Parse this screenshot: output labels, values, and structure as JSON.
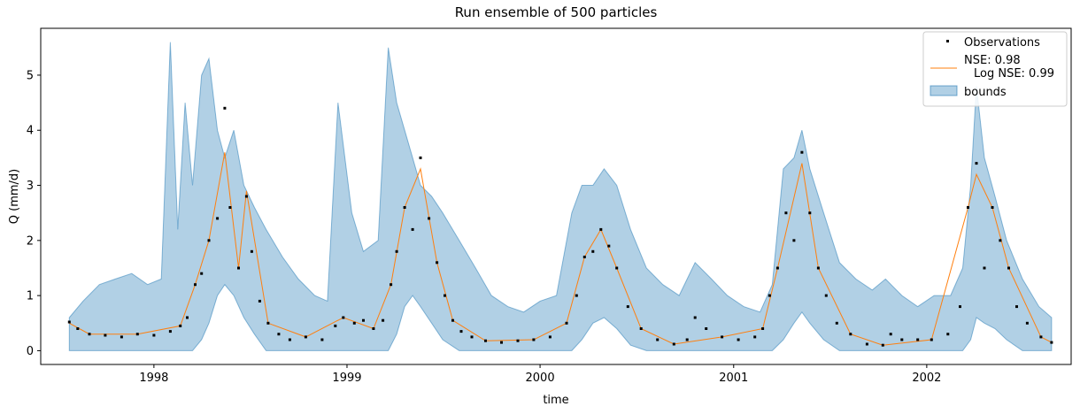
{
  "chart_data": {
    "type": "line",
    "title": "Run ensemble of 500 particles",
    "xlabel": "time",
    "ylabel": "Q (mm/d)",
    "xlim": [
      "1997-06-01",
      "2002-10-01"
    ],
    "ylim": [
      -0.25,
      5.85
    ],
    "x_ticks": [
      "1998-01-01",
      "1999-01-01",
      "2000-01-01",
      "2001-01-01",
      "2002-01-01"
    ],
    "x_tick_labels": [
      "1998",
      "1999",
      "2000",
      "2001",
      "2002"
    ],
    "y_ticks": [
      0,
      1,
      2,
      3,
      4,
      5
    ],
    "y_tick_labels": [
      "0",
      "1",
      "2",
      "3",
      "4",
      "5"
    ],
    "legend_position": "top-right",
    "grid": false,
    "colors": {
      "observations": "#000000",
      "simulation": "#ff7f0e",
      "bounds_fill": "#1f77b4"
    },
    "legend": [
      {
        "label": "Observations",
        "marker": "dot"
      },
      {
        "label": "NSE: 0.98",
        "label_line2": "Log NSE: 0.99",
        "marker": "line"
      },
      {
        "label": "bounds",
        "marker": "patch"
      }
    ],
    "series": [
      {
        "name": "Observations",
        "kind": "scatter",
        "x": [
          "1997-07-25",
          "1997-08-10",
          "1997-09-01",
          "1997-10-01",
          "1997-11-01",
          "1997-12-01",
          "1998-01-01",
          "1998-02-01",
          "1998-02-20",
          "1998-03-05",
          "1998-03-20",
          "1998-04-01",
          "1998-04-15",
          "1998-05-01",
          "1998-05-15",
          "1998-05-25",
          "1998-06-10",
          "1998-06-25",
          "1998-07-05",
          "1998-07-20",
          "1998-08-05",
          "1998-08-25",
          "1998-09-15",
          "1998-10-15",
          "1998-11-15",
          "1998-12-10",
          "1998-12-25",
          "1999-01-15",
          "1999-02-01",
          "1999-02-20",
          "1999-03-10",
          "1999-03-25",
          "1999-04-05",
          "1999-04-20",
          "1999-05-05",
          "1999-05-20",
          "1999-06-05",
          "1999-06-20",
          "1999-07-05",
          "1999-07-20",
          "1999-08-05",
          "1999-08-25",
          "1999-09-20",
          "1999-10-20",
          "1999-11-20",
          "1999-12-20",
          "2000-01-20",
          "2000-02-20",
          "2000-03-10",
          "2000-03-25",
          "2000-04-10",
          "2000-04-25",
          "2000-05-10",
          "2000-05-25",
          "2000-06-15",
          "2000-07-10",
          "2000-08-10",
          "2000-09-10",
          "2000-10-05",
          "2000-10-20",
          "2000-11-10",
          "2000-12-10",
          "2001-01-10",
          "2001-02-10",
          "2001-02-25",
          "2001-03-10",
          "2001-03-25",
          "2001-04-10",
          "2001-04-25",
          "2001-05-10",
          "2001-05-25",
          "2001-06-10",
          "2001-06-25",
          "2001-07-15",
          "2001-08-10",
          "2001-09-10",
          "2001-10-10",
          "2001-10-25",
          "2001-11-15",
          "2001-12-15",
          "2002-01-10",
          "2002-02-10",
          "2002-03-05",
          "2002-03-20",
          "2002-04-05",
          "2002-04-20",
          "2002-05-05",
          "2002-05-20",
          "2002-06-05",
          "2002-06-20",
          "2002-07-10",
          "2002-08-05",
          "2002-08-25"
        ],
        "y": [
          0.52,
          0.4,
          0.3,
          0.28,
          0.25,
          0.3,
          0.28,
          0.35,
          0.45,
          0.6,
          1.2,
          1.4,
          2.0,
          2.4,
          4.4,
          2.6,
          1.5,
          2.8,
          1.8,
          0.9,
          0.5,
          0.3,
          0.2,
          0.25,
          0.2,
          0.45,
          0.6,
          0.5,
          0.55,
          0.4,
          0.55,
          1.2,
          1.8,
          2.6,
          2.2,
          3.5,
          2.4,
          1.6,
          1.0,
          0.55,
          0.35,
          0.25,
          0.18,
          0.15,
          0.18,
          0.2,
          0.25,
          0.5,
          1.0,
          1.7,
          1.8,
          2.2,
          1.9,
          1.5,
          0.8,
          0.4,
          0.2,
          0.12,
          0.2,
          0.6,
          0.4,
          0.25,
          0.2,
          0.25,
          0.4,
          1.0,
          1.5,
          2.5,
          2.0,
          3.6,
          2.5,
          1.5,
          1.0,
          0.5,
          0.3,
          0.12,
          0.1,
          0.3,
          0.2,
          0.2,
          0.2,
          0.3,
          0.8,
          2.6,
          3.4,
          1.5,
          2.6,
          2.0,
          1.5,
          0.8,
          0.5,
          0.25,
          0.15
        ]
      },
      {
        "name": "NSE: 0.98",
        "kind": "line",
        "x": [
          "1997-07-25",
          "1997-09-01",
          "1997-12-01",
          "1998-02-20",
          "1998-03-20",
          "1998-04-15",
          "1998-05-15",
          "1998-06-10",
          "1998-06-25",
          "1998-08-05",
          "1998-10-15",
          "1998-12-25",
          "1999-02-20",
          "1999-03-25",
          "1999-04-20",
          "1999-05-20",
          "1999-06-20",
          "1999-07-20",
          "1999-09-20",
          "1999-12-20",
          "2000-02-20",
          "2000-03-25",
          "2000-04-25",
          "2000-05-25",
          "2000-07-10",
          "2000-09-10",
          "2000-12-10",
          "2001-02-25",
          "2001-03-25",
          "2001-05-10",
          "2001-06-10",
          "2001-08-10",
          "2001-10-10",
          "2002-01-10",
          "2002-03-20",
          "2002-04-05",
          "2002-05-05",
          "2002-06-05",
          "2002-08-05",
          "2002-08-25"
        ],
        "y": [
          0.5,
          0.3,
          0.3,
          0.45,
          1.2,
          2.0,
          3.6,
          1.5,
          2.9,
          0.5,
          0.25,
          0.6,
          0.4,
          1.2,
          2.6,
          3.3,
          1.6,
          0.55,
          0.18,
          0.2,
          0.5,
          1.7,
          2.2,
          1.5,
          0.4,
          0.12,
          0.25,
          0.4,
          1.5,
          3.4,
          1.5,
          0.3,
          0.1,
          0.2,
          2.6,
          3.2,
          2.6,
          1.5,
          0.25,
          0.15
        ]
      }
    ],
    "bounds": {
      "name": "bounds",
      "x": [
        "1997-07-25",
        "1997-08-20",
        "1997-09-20",
        "1997-10-20",
        "1997-11-20",
        "1997-12-20",
        "1998-01-15",
        "1998-02-01",
        "1998-02-15",
        "1998-03-01",
        "1998-03-15",
        "1998-04-01",
        "1998-04-15",
        "1998-05-01",
        "1998-05-15",
        "1998-06-01",
        "1998-06-20",
        "1998-07-10",
        "1998-08-01",
        "1998-09-01",
        "1998-10-01",
        "1998-11-01",
        "1998-11-25",
        "1998-12-15",
        "1999-01-10",
        "1999-02-01",
        "1999-03-01",
        "1999-03-20",
        "1999-04-05",
        "1999-04-20",
        "1999-05-05",
        "1999-05-20",
        "1999-06-10",
        "1999-07-01",
        "1999-08-01",
        "1999-09-01",
        "1999-10-01",
        "1999-11-01",
        "1999-12-01",
        "2000-01-01",
        "2000-02-01",
        "2000-03-01",
        "2000-03-20",
        "2000-04-10",
        "2000-05-01",
        "2000-05-25",
        "2000-06-20",
        "2000-07-20",
        "2000-08-20",
        "2000-09-20",
        "2000-10-20",
        "2000-11-20",
        "2000-12-20",
        "2001-01-20",
        "2001-02-20",
        "2001-03-15",
        "2001-04-05",
        "2001-04-25",
        "2001-05-10",
        "2001-05-25",
        "2001-06-20",
        "2001-07-20",
        "2001-08-20",
        "2001-09-20",
        "2001-10-15",
        "2001-11-15",
        "2001-12-15",
        "2002-01-15",
        "2002-02-15",
        "2002-03-10",
        "2002-03-25",
        "2002-04-05",
        "2002-04-20",
        "2002-05-10",
        "2002-06-01",
        "2002-07-01",
        "2002-08-01",
        "2002-08-25"
      ],
      "upper": [
        0.6,
        0.9,
        1.2,
        1.3,
        1.4,
        1.2,
        1.3,
        5.6,
        2.2,
        4.5,
        3.0,
        5.0,
        5.3,
        4.0,
        3.5,
        4.0,
        3.0,
        2.6,
        2.2,
        1.7,
        1.3,
        1.0,
        0.9,
        4.5,
        2.5,
        1.8,
        2.0,
        5.5,
        4.5,
        4.0,
        3.5,
        3.0,
        2.8,
        2.5,
        2.0,
        1.5,
        1.0,
        0.8,
        0.7,
        0.9,
        1.0,
        2.5,
        3.0,
        3.0,
        3.3,
        3.0,
        2.2,
        1.5,
        1.2,
        1.0,
        1.6,
        1.3,
        1.0,
        0.8,
        0.7,
        1.2,
        3.3,
        3.5,
        4.0,
        3.3,
        2.5,
        1.6,
        1.3,
        1.1,
        1.3,
        1.0,
        0.8,
        1.0,
        1.0,
        1.5,
        3.0,
        4.8,
        3.5,
        2.8,
        2.0,
        1.3,
        0.8,
        0.6
      ],
      "lower": [
        0,
        0,
        0,
        0,
        0,
        0,
        0,
        0,
        0,
        0,
        0,
        0.2,
        0.5,
        1.0,
        1.2,
        1.0,
        0.6,
        0.3,
        0,
        0,
        0,
        0,
        0,
        0,
        0,
        0,
        0,
        0,
        0.3,
        0.8,
        1.0,
        0.8,
        0.5,
        0.2,
        0,
        0,
        0,
        0,
        0,
        0,
        0,
        0,
        0.2,
        0.5,
        0.6,
        0.4,
        0.1,
        0,
        0,
        0,
        0,
        0,
        0,
        0,
        0,
        0,
        0.2,
        0.5,
        0.7,
        0.5,
        0.2,
        0,
        0,
        0,
        0,
        0,
        0,
        0,
        0,
        0,
        0.2,
        0.6,
        0.5,
        0.4,
        0.2,
        0,
        0,
        0
      ]
    }
  }
}
